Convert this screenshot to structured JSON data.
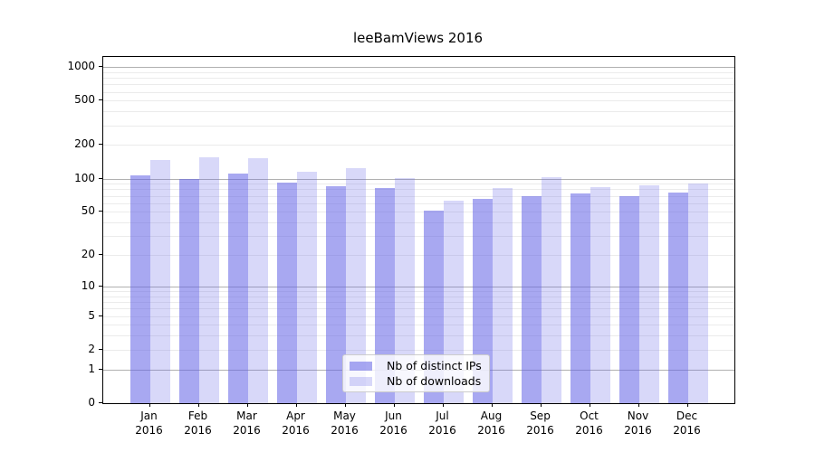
{
  "chart_data": {
    "type": "bar",
    "title": "leeBamViews 2016",
    "categories": [
      "Jan 2016",
      "Feb 2016",
      "Mar 2016",
      "Apr 2016",
      "May 2016",
      "Jun 2016",
      "Jul 2016",
      "Aug 2016",
      "Sep 2016",
      "Oct 2016",
      "Nov 2016",
      "Dec 2016"
    ],
    "series": [
      {
        "name": "Nb of distinct IPs",
        "color": "rgba(100,100,230,0.56)",
        "values": [
          107,
          99,
          112,
          92,
          86,
          82,
          51,
          65,
          70,
          73,
          69,
          75
        ]
      },
      {
        "name": "Nb of downloads",
        "color": "rgba(100,100,230,0.25)",
        "values": [
          148,
          155,
          152,
          116,
          125,
          101,
          63,
          82,
          103,
          84,
          87,
          90
        ]
      }
    ],
    "xlabel": "",
    "ylabel": "",
    "yscale": "log1p",
    "ylim": [
      0,
      1000
    ],
    "yticks": [
      0,
      1,
      2,
      5,
      10,
      20,
      50,
      100,
      200,
      500,
      1000
    ],
    "grid": {
      "major_ticks": [
        1,
        10,
        100,
        1000
      ],
      "major_color": "#b0b0b0",
      "minor_color": "#ebebeb",
      "minor_subs": [
        2,
        3,
        4,
        5,
        6,
        7,
        8,
        9
      ]
    },
    "legend": {
      "position": "lower center",
      "entries": [
        "Nb of distinct IPs",
        "Nb of downloads"
      ]
    }
  }
}
